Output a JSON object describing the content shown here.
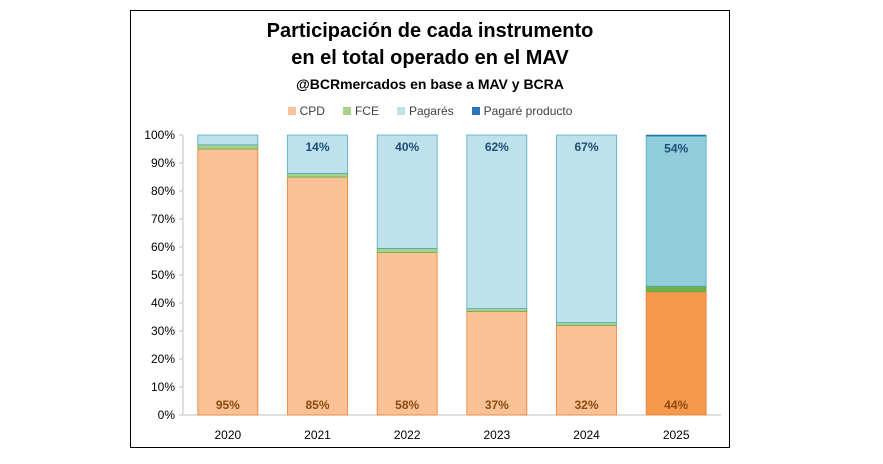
{
  "chart_data": {
    "type": "bar",
    "stacked": true,
    "title": "Participación de cada instrumento",
    "title_line2": "en el total operado en el MAV",
    "subtitle": "@BCRmercados en base a MAV y BCRA",
    "categories": [
      "2020",
      "2021",
      "2022",
      "2023",
      "2024",
      "2025"
    ],
    "series": [
      {
        "name": "CPD",
        "values": [
          95,
          85,
          58,
          37,
          32,
          44
        ],
        "color": "#F8C196",
        "labels": [
          "95%",
          "85%",
          "58%",
          "37%",
          "32%",
          "44%"
        ]
      },
      {
        "name": "FCE",
        "values": [
          1.5,
          1.3,
          1.5,
          1.0,
          1.0,
          2.0
        ],
        "color": "#A9D18E",
        "labels": [
          "",
          "",
          "",
          "",
          "",
          ""
        ]
      },
      {
        "name": "Pagarés",
        "values": [
          3.5,
          13.7,
          40.5,
          62.0,
          67.0,
          53.5
        ],
        "color": "#BEE1EB",
        "labels": [
          "",
          "14%",
          "40%",
          "62%",
          "67%",
          "54%"
        ]
      },
      {
        "name": "Pagaré producto",
        "values": [
          0,
          0,
          0,
          0,
          0,
          0.5
        ],
        "color": "#2E75B6",
        "labels": [
          "",
          "",
          "",
          "",
          "",
          ""
        ]
      }
    ],
    "highlight": {
      "category": "2025",
      "colors": {
        "CPD": "#F59A4C",
        "FCE": "#70AD47",
        "Pagarés": "#92CDDC",
        "Pagaré producto": "#1F4E79"
      }
    },
    "ylim": [
      0,
      100
    ],
    "yticks": [
      "0%",
      "10%",
      "20%",
      "30%",
      "40%",
      "50%",
      "60%",
      "70%",
      "80%",
      "90%",
      "100%"
    ],
    "grid": false,
    "legend_position": "top",
    "label_colors": {
      "CPD": "#8C4A0F",
      "Pagarés": "#1F4E79"
    }
  }
}
